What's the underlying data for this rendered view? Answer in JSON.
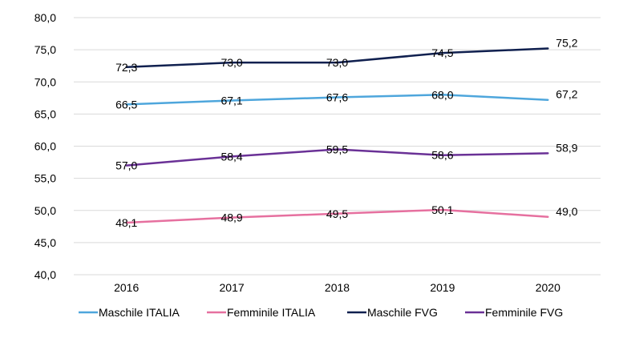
{
  "chart_data": {
    "type": "line",
    "x": [
      "2016",
      "2017",
      "2018",
      "2019",
      "2020"
    ],
    "ylim": [
      40,
      80
    ],
    "yticks": [
      "40,0",
      "45,0",
      "50,0",
      "55,0",
      "60,0",
      "65,0",
      "70,0",
      "75,0",
      "80,0"
    ],
    "grid": true,
    "legend_position": "bottom",
    "series": [
      {
        "name": "Maschile ITALIA",
        "color": "#4ea6dc",
        "values": [
          66.5,
          67.1,
          67.6,
          68.0,
          67.2
        ],
        "labels": [
          "66,5",
          "67,1",
          "67,6",
          "68,0",
          "67,2"
        ]
      },
      {
        "name": "Femminile ITALIA",
        "color": "#e6709f",
        "values": [
          48.1,
          48.9,
          49.5,
          50.1,
          49.0
        ],
        "labels": [
          "48,1",
          "48,9",
          "49,5",
          "50,1",
          "49,0"
        ]
      },
      {
        "name": "Maschile FVG",
        "color": "#10204f",
        "values": [
          72.3,
          73.0,
          73.0,
          74.5,
          75.2
        ],
        "labels": [
          "72,3",
          "73,0",
          "73,0",
          "74,5",
          "75,2"
        ]
      },
      {
        "name": "Femminile FVG",
        "color": "#6a3196",
        "values": [
          57.0,
          58.4,
          59.5,
          58.6,
          58.9
        ],
        "labels": [
          "57,0",
          "58,4",
          "59,5",
          "58,6",
          "58,9"
        ]
      }
    ]
  }
}
